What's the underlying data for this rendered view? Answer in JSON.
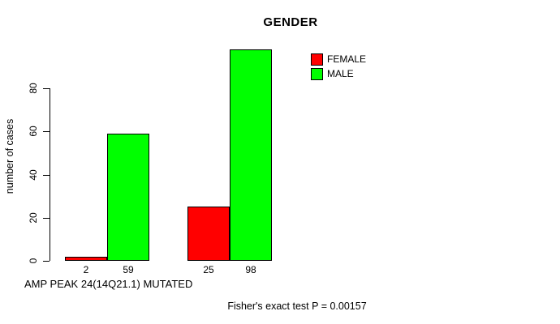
{
  "chart_data": {
    "type": "bar",
    "title": "GENDER",
    "ylabel": "number of cases",
    "ylim": [
      0,
      98
    ],
    "yticks": [
      0,
      20,
      40,
      60,
      80
    ],
    "grid": false,
    "legend_position": "topright",
    "series": [
      {
        "name": "FEMALE",
        "color": "#ff0000",
        "values": [
          2,
          25
        ]
      },
      {
        "name": "MALE",
        "color": "#00ff00",
        "values": [
          59,
          98
        ]
      }
    ],
    "bar_value_labels": [
      [
        "2",
        "59"
      ],
      [
        "25",
        "98"
      ]
    ],
    "axis_note": "AMP PEAK 24(14Q21.1) MUTATED",
    "footnote": "Fisher's exact test P = 0.00157"
  },
  "colors": {
    "axis": "#000000",
    "background": "#ffffff"
  }
}
